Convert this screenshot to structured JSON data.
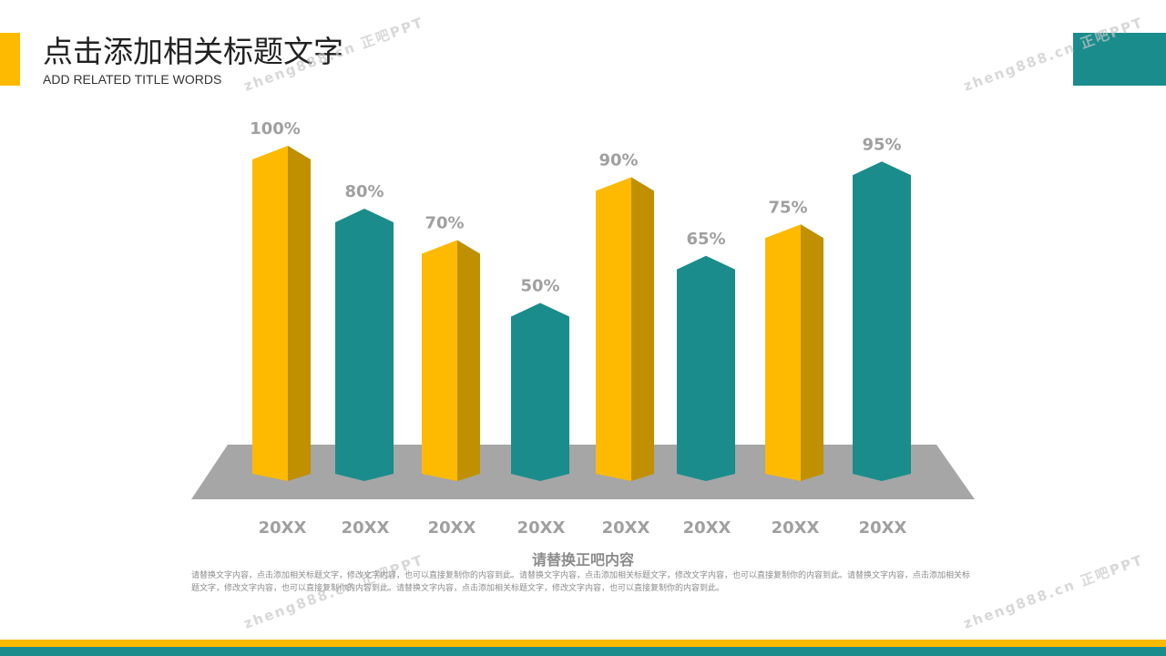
{
  "header": {
    "title": "点击添加相关标题文字",
    "subtitle": "ADD RELATED TITLE WORDS"
  },
  "chart_data": {
    "type": "bar3d",
    "categories": [
      "20XX",
      "20XX",
      "20XX",
      "20XX",
      "20XX",
      "20XX",
      "20XX",
      "20XX"
    ],
    "values": [
      100,
      80,
      70,
      50,
      90,
      65,
      75,
      95
    ],
    "value_labels": [
      "100%",
      "80%",
      "70%",
      "50%",
      "90%",
      "65%",
      "75%",
      "95%"
    ],
    "colors": [
      "#fdba00",
      "#1b8c8c",
      "#fdba00",
      "#1b8c8c",
      "#fdba00",
      "#1b8c8c",
      "#fdba00",
      "#1b8c8c"
    ],
    "shade_color": "#c09000"
  },
  "caption": {
    "title": "请替换正吧内容",
    "body": "请替换文字内容，点击添加相关标题文字，修改文字内容，也可以直接复制你的内容到此。请替换文字内容，点击添加相关标题文字，修改文字内容，也可以直接复制你的内容到此。请替换文字内容，点击添加相关标题文字，修改文字内容，也可以直接复制你的内容到此。请替换文字内容，点击添加相关标题文字，修改文字内容，也可以直接复制你的内容到此。"
  },
  "watermark": "zheng888.cn 正吧PPT"
}
